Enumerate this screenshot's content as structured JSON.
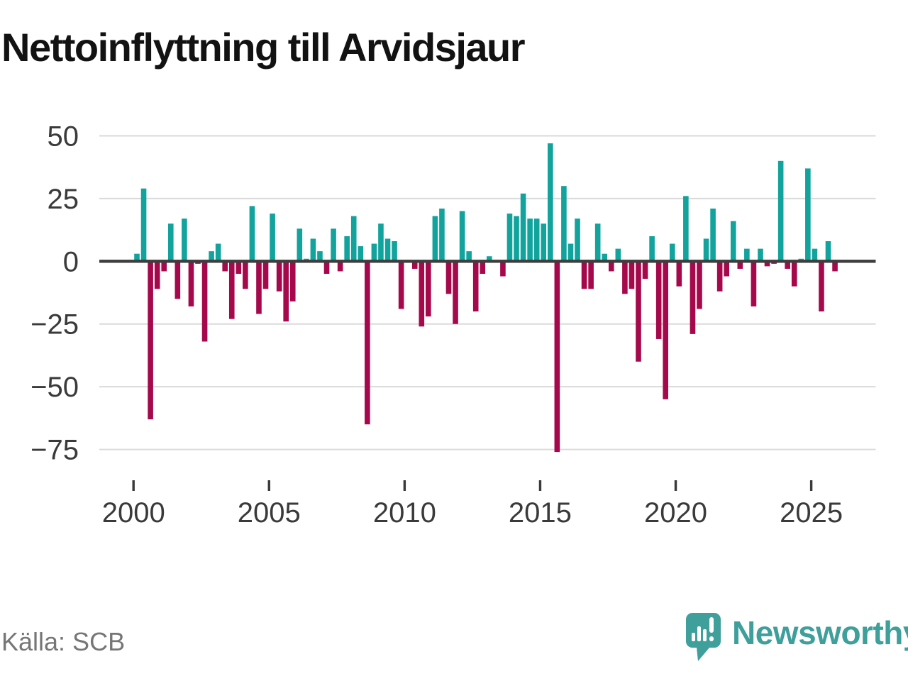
{
  "title": "Nettoinflyttning till Arvidsjaur",
  "source": "Källa: SCB",
  "branding": {
    "wordmark": "Newsworthy",
    "logo_icon": "speech-bubble-with-bar-chart-and-exclamation"
  },
  "colors": {
    "positive": "#12a39d",
    "negative": "#a5094c",
    "grid": "#dadada",
    "zero_line": "#3d3d3d",
    "axis_text": "#3a3a3a",
    "title_text": "#121212",
    "source_text": "#767676",
    "brand_teal": "#3f9f9b"
  },
  "y_axis": {
    "tick_labels": [
      "50",
      "25",
      "0",
      "−25",
      "−50",
      "−75"
    ],
    "tick_values": [
      50,
      25,
      0,
      -25,
      -50,
      -75
    ]
  },
  "x_axis": {
    "tick_labels": [
      "2000",
      "2005",
      "2010",
      "2015",
      "2020",
      "2025"
    ],
    "tick_years": [
      2000,
      2005,
      2010,
      2015,
      2020,
      2025
    ]
  },
  "chart_data": {
    "type": "bar",
    "title": "Nettoinflyttning till Arvidsjaur",
    "xlabel": "",
    "ylabel": "",
    "ylim": [
      -80,
      55
    ],
    "yticks": [
      50,
      25,
      0,
      -25,
      -50,
      -75
    ],
    "xticks": [
      2000,
      2005,
      2010,
      2015,
      2020,
      2025
    ],
    "grid": "horizontal",
    "legend": "none",
    "positive_color": "#12a39d",
    "negative_color": "#a5094c",
    "x": [
      "2000 Q1",
      "2000 Q2",
      "2000 Q3",
      "2000 Q4",
      "2001 Q1",
      "2001 Q2",
      "2001 Q3",
      "2001 Q4",
      "2002 Q1",
      "2002 Q2",
      "2002 Q3",
      "2002 Q4",
      "2003 Q1",
      "2003 Q2",
      "2003 Q3",
      "2003 Q4",
      "2004 Q1",
      "2004 Q2",
      "2004 Q3",
      "2004 Q4",
      "2005 Q1",
      "2005 Q2",
      "2005 Q3",
      "2005 Q4",
      "2006 Q1",
      "2006 Q2",
      "2006 Q3",
      "2006 Q4",
      "2007 Q1",
      "2007 Q2",
      "2007 Q3",
      "2007 Q4",
      "2008 Q1",
      "2008 Q2",
      "2008 Q3",
      "2008 Q4",
      "2009 Q1",
      "2009 Q2",
      "2009 Q3",
      "2009 Q4",
      "2010 Q1",
      "2010 Q2",
      "2010 Q3",
      "2010 Q4",
      "2011 Q1",
      "2011 Q2",
      "2011 Q3",
      "2011 Q4",
      "2012 Q1",
      "2012 Q2",
      "2012 Q3",
      "2012 Q4",
      "2013 Q1",
      "2013 Q2",
      "2013 Q3",
      "2013 Q4",
      "2014 Q1",
      "2014 Q2",
      "2014 Q3",
      "2014 Q4",
      "2015 Q1",
      "2015 Q2",
      "2015 Q3",
      "2015 Q4",
      "2016 Q1",
      "2016 Q2",
      "2016 Q3",
      "2016 Q4",
      "2017 Q1",
      "2017 Q2",
      "2017 Q3",
      "2017 Q4",
      "2018 Q1",
      "2018 Q2",
      "2018 Q3",
      "2018 Q4",
      "2019 Q1",
      "2019 Q2",
      "2019 Q3",
      "2019 Q4",
      "2020 Q1",
      "2020 Q2",
      "2020 Q3",
      "2020 Q4",
      "2021 Q1",
      "2021 Q2",
      "2021 Q3",
      "2021 Q4",
      "2022 Q1",
      "2022 Q2",
      "2022 Q3",
      "2022 Q4",
      "2023 Q1",
      "2023 Q2",
      "2023 Q3",
      "2023 Q4",
      "2024 Q1",
      "2024 Q2",
      "2024 Q3",
      "2024 Q4",
      "2025 Q1",
      "2025 Q2",
      "2025 Q3",
      "2025 Q4"
    ],
    "values": [
      3,
      29,
      -63,
      -11,
      -4,
      15,
      -15,
      17,
      -18,
      -1,
      -32,
      4,
      7,
      -4,
      -23,
      -5,
      -11,
      22,
      -21,
      -11,
      19,
      -12,
      -24,
      -16,
      13,
      1,
      9,
      4,
      -5,
      13,
      -4,
      10,
      18,
      6,
      -65,
      7,
      15,
      9,
      8,
      -19,
      0,
      -3,
      -26,
      -22,
      18,
      21,
      -13,
      -25,
      20,
      4,
      -20,
      -5,
      2,
      0,
      -6,
      19,
      18,
      27,
      17,
      17,
      15,
      47,
      -76,
      30,
      7,
      17,
      -11,
      -11,
      15,
      3,
      -4,
      5,
      -13,
      -11,
      -40,
      -7,
      10,
      -31,
      -55,
      7,
      -10,
      26,
      -29,
      -19,
      9,
      21,
      -12,
      -6,
      16,
      -3,
      5,
      -18,
      5,
      -2,
      -1,
      40,
      -3,
      -10,
      1,
      37,
      5,
      -20,
      8,
      -4
    ]
  }
}
